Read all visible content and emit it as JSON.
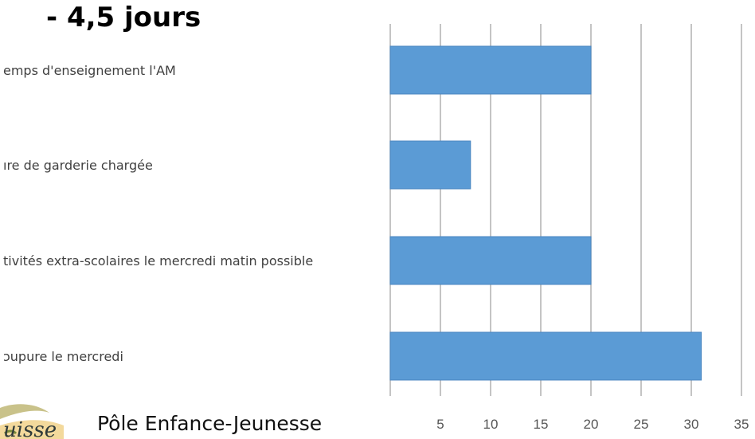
{
  "page": {
    "title": "- 4,5 jours",
    "footer_text": "Pôle Enfance-Jeunesse",
    "logo_text": "uisse"
  },
  "colors": {
    "bar": "#5b9bd5",
    "bar_border": "#4a86c0",
    "grid": "#b0b0b0"
  },
  "chart_data": {
    "type": "bar",
    "orientation": "horizontal",
    "categories": [
      "emps d'enseignement l'AM",
      "ıre de garderie chargée",
      "tivités extra-scolaires le mercredi matin possible",
      "ɔupure le mercredi"
    ],
    "values": [
      20,
      8,
      20,
      31
    ],
    "xlim": [
      0,
      35
    ],
    "xticks": [
      "5",
      "10",
      "15",
      "20",
      "25",
      "30",
      "35"
    ],
    "grid": true,
    "legend": "none"
  }
}
